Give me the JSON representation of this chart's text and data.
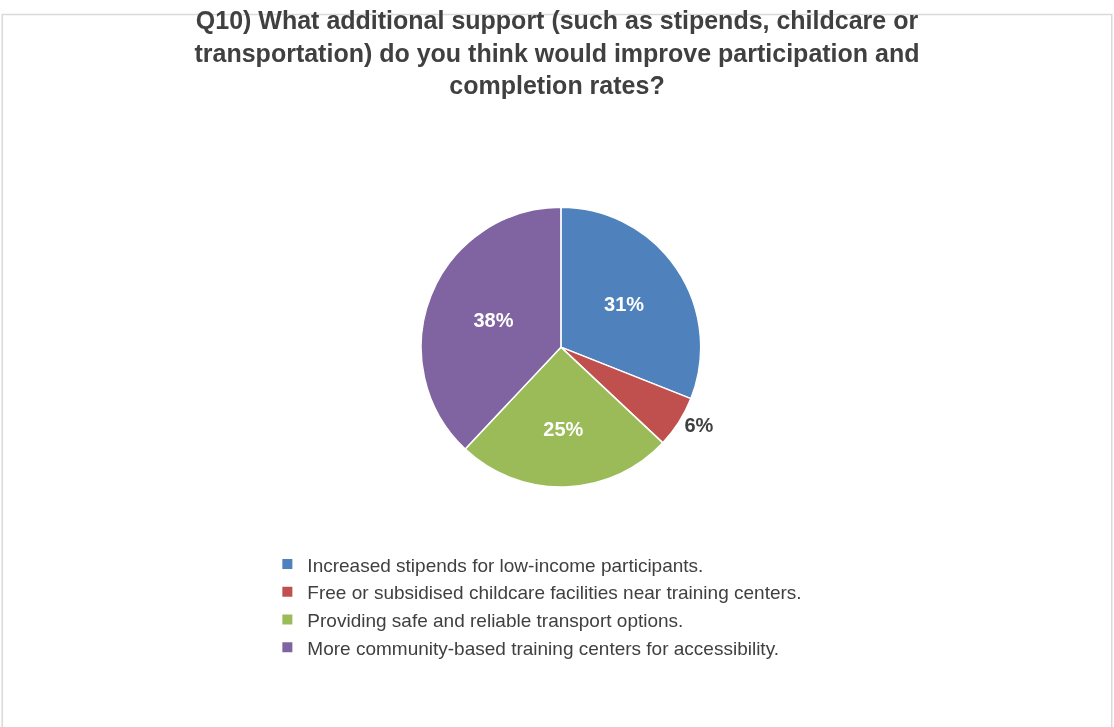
{
  "chart_data": {
    "type": "pie",
    "title": "Q10) What additional support (such as stipends, childcare or transportation) do you think would improve participation and completion rates?",
    "categories": [
      "Increased stipends for low-income participants.",
      "Free or subsidised childcare facilities near training centers.",
      "Providing safe and reliable transport options.",
      "More community-based training centers for accessibility."
    ],
    "values": [
      31,
      6,
      25,
      38
    ],
    "value_labels": [
      "31%",
      "6%",
      "25%",
      "38%"
    ],
    "colors": [
      "#4f81bd",
      "#c0504d",
      "#9bbb59",
      "#8064a2"
    ],
    "legend": "bottom"
  }
}
